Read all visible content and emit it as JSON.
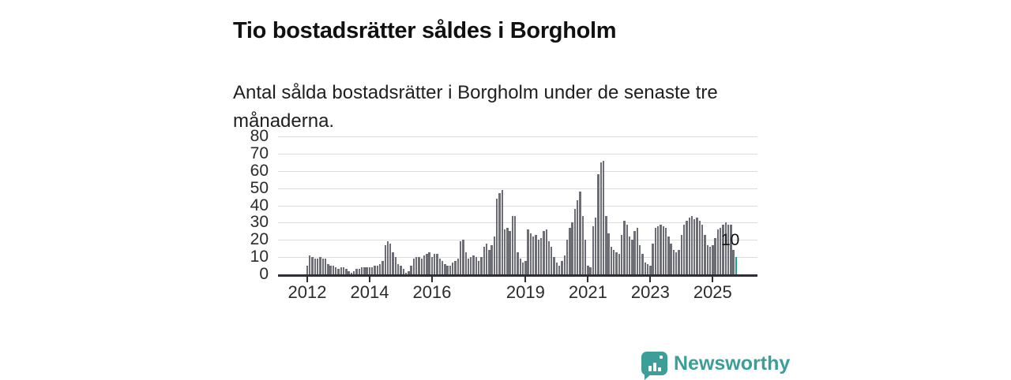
{
  "header": {
    "title": "Tio bostadsrätter såldes i Borgholm",
    "subtitle": "Antal sålda bostadsrätter i Borgholm under de senaste tre månaderna."
  },
  "branding": {
    "name": "Newsworthy",
    "logo_icon": "speech-bubble-bar-chart-icon"
  },
  "colors": {
    "bar": "#6d6d76",
    "highlight": "#12a19a",
    "gridline": "#dcdcdc",
    "axis": "#2f2f33",
    "brand": "#3b9e98"
  },
  "chart_data": {
    "type": "bar",
    "title": "Tio bostadsrätter såldes i Borgholm",
    "subtitle": "Antal sålda bostadsrätter i Borgholm under de senaste tre månaderna.",
    "xlabel": "",
    "ylabel": "",
    "x_unit": "month",
    "x_start_year": 2012,
    "ylim": [
      0,
      80
    ],
    "y_ticks": [
      0,
      10,
      20,
      30,
      40,
      50,
      60,
      70,
      80
    ],
    "x_tick_labels": [
      "2012",
      "2014",
      "2016",
      "2019",
      "2021",
      "2023",
      "2025"
    ],
    "grid": true,
    "legend": false,
    "last_value_label": "10",
    "highlight_last": true,
    "series": [
      {
        "name": "Antal sålda bostadsrätter",
        "values": [
          5,
          11,
          10,
          9,
          9,
          10,
          9,
          9,
          6,
          5,
          5,
          4,
          3,
          4,
          4,
          3,
          2,
          1,
          2,
          3,
          3,
          4,
          4,
          4,
          4,
          4,
          5,
          5,
          6,
          8,
          17,
          19,
          18,
          13,
          10,
          6,
          5,
          3,
          1,
          2,
          5,
          9,
          10,
          10,
          9,
          11,
          12,
          13,
          10,
          12,
          12,
          9,
          8,
          6,
          5,
          5,
          7,
          8,
          9,
          19,
          20,
          13,
          9,
          10,
          11,
          10,
          8,
          10,
          16,
          18,
          14,
          17,
          22,
          44,
          47,
          49,
          26,
          27,
          25,
          34,
          34,
          13,
          9,
          7,
          8,
          26,
          24,
          22,
          23,
          20,
          21,
          25,
          26,
          19,
          16,
          10,
          7,
          5,
          8,
          11,
          20,
          27,
          30,
          38,
          43,
          48,
          34,
          20,
          5,
          4,
          28,
          33,
          58,
          65,
          66,
          34,
          24,
          16,
          14,
          13,
          12,
          23,
          31,
          29,
          22,
          20,
          25,
          27,
          17,
          12,
          7,
          6,
          5,
          18,
          27,
          28,
          29,
          28,
          27,
          22,
          18,
          14,
          13,
          14,
          23,
          29,
          31,
          33,
          34,
          32,
          33,
          31,
          29,
          23,
          17,
          16,
          17,
          21,
          26,
          27,
          29,
          30,
          29,
          29,
          14,
          10
        ]
      }
    ]
  }
}
